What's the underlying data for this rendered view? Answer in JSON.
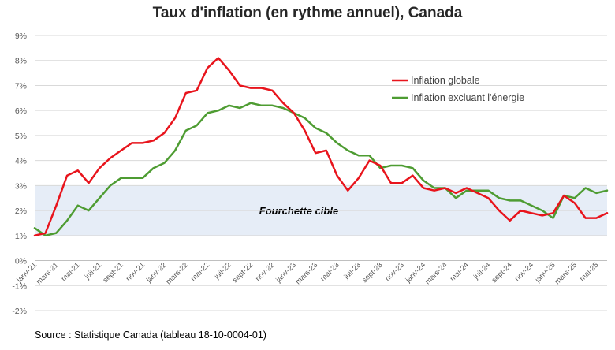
{
  "title": "Taux d'inflation (en rythme annuel), Canada",
  "source": "Source : Statistique Canada (tableau 18-10-0004-01)",
  "chart_data": {
    "type": "line",
    "title": "Taux d'inflation (en rythme annuel), Canada",
    "ylim": [
      -2,
      9
    ],
    "yticks": [
      "-2%",
      "-1%",
      "0%",
      "1%",
      "2%",
      "3%",
      "4%",
      "5%",
      "6%",
      "7%",
      "8%",
      "9%"
    ],
    "ytick_values": [
      -2,
      -1,
      0,
      1,
      2,
      3,
      4,
      5,
      6,
      7,
      8,
      9
    ],
    "xtick_labels": [
      "janv-21",
      "mars-21",
      "mai-21",
      "juil-21",
      "sept-21",
      "nov-21",
      "janv-22",
      "mars-22",
      "mai-22",
      "juil-22",
      "sept-22",
      "nov-22",
      "janv-23",
      "mars-23",
      "mai-23",
      "juil-23",
      "sept-23",
      "nov-23",
      "janv-24",
      "mars-24",
      "mai-24",
      "juil-24",
      "sept-24",
      "nov-24",
      "janv-25",
      "mars-25",
      "mai-25"
    ],
    "grid": true,
    "legend_position": "top-right",
    "target_band": {
      "low": 1,
      "high": 3,
      "label": "Fourchette cible",
      "color": "#e6edf7"
    },
    "series": [
      {
        "name": "Inflation globale",
        "color": "#e8141c",
        "values": [
          1.0,
          1.1,
          2.2,
          3.4,
          3.6,
          3.1,
          3.7,
          4.1,
          4.4,
          4.7,
          4.7,
          4.8,
          5.1,
          5.7,
          6.7,
          6.8,
          7.7,
          8.1,
          7.6,
          7.0,
          6.9,
          6.9,
          6.8,
          6.3,
          5.9,
          5.2,
          4.3,
          4.4,
          3.4,
          2.8,
          3.3,
          4.0,
          3.8,
          3.1,
          3.1,
          3.4,
          2.9,
          2.8,
          2.9,
          2.7,
          2.9,
          2.7,
          2.5,
          2.0,
          1.6,
          2.0,
          1.9,
          1.8,
          1.9,
          2.6,
          2.3,
          1.7,
          1.7,
          1.9
        ]
      },
      {
        "name": "Inflation excluant l'énergie",
        "color": "#4e9c32",
        "values": [
          1.3,
          1.0,
          1.1,
          1.6,
          2.2,
          2.0,
          2.5,
          3.0,
          3.3,
          3.3,
          3.3,
          3.7,
          3.9,
          4.4,
          5.2,
          5.4,
          5.9,
          6.0,
          6.2,
          6.1,
          6.3,
          6.2,
          6.2,
          6.1,
          5.9,
          5.7,
          5.3,
          5.1,
          4.7,
          4.4,
          4.2,
          4.2,
          3.7,
          3.8,
          3.8,
          3.7,
          3.2,
          2.9,
          2.9,
          2.5,
          2.8,
          2.8,
          2.8,
          2.5,
          2.4,
          2.4,
          2.2,
          2.0,
          1.7,
          2.6,
          2.5,
          2.9,
          2.7,
          2.8
        ]
      }
    ]
  }
}
